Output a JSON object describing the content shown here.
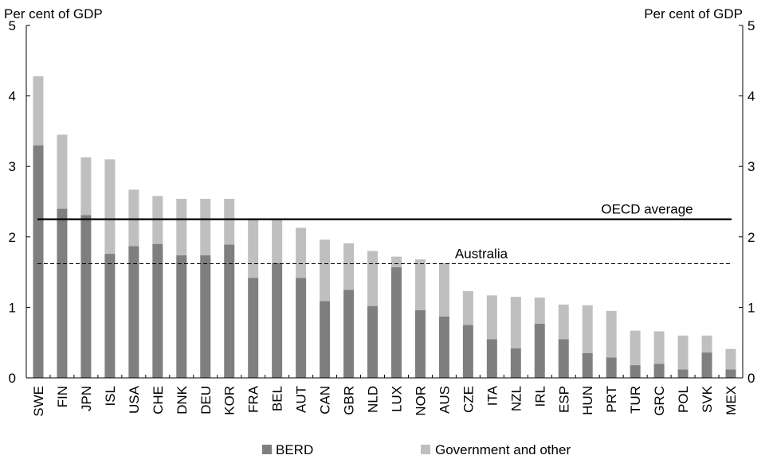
{
  "chart_data": {
    "type": "bar",
    "stacked": true,
    "y_unit_left": "Per cent of GDP",
    "y_unit_right": "Per cent of GDP",
    "ylim": [
      0,
      5
    ],
    "yticks": [
      0,
      1,
      2,
      3,
      4,
      5
    ],
    "grid": false,
    "legend_position": "bottom",
    "categories": [
      "SWE",
      "FIN",
      "JPN",
      "ISL",
      "USA",
      "CHE",
      "DNK",
      "DEU",
      "KOR",
      "FRA",
      "BEL",
      "AUT",
      "CAN",
      "GBR",
      "NLD",
      "LUX",
      "NOR",
      "AUS",
      "CZE",
      "ITA",
      "NZL",
      "IRL",
      "ESP",
      "HUN",
      "PRT",
      "TUR",
      "GRC",
      "POL",
      "SVK",
      "MEX"
    ],
    "series": [
      {
        "name": "BERD",
        "color": "#7f7f7f",
        "values": [
          3.3,
          2.4,
          2.31,
          1.76,
          1.87,
          1.9,
          1.74,
          1.74,
          1.89,
          1.42,
          1.63,
          1.42,
          1.09,
          1.25,
          1.02,
          1.57,
          0.96,
          0.87,
          0.75,
          0.55,
          0.42,
          0.77,
          0.55,
          0.35,
          0.29,
          0.18,
          0.2,
          0.12,
          0.36,
          0.12
        ]
      },
      {
        "name": "Government and other",
        "color": "#bfbfbf",
        "values": [
          0.98,
          1.05,
          0.82,
          1.34,
          0.8,
          0.68,
          0.8,
          0.8,
          0.65,
          0.82,
          0.62,
          0.71,
          0.87,
          0.66,
          0.78,
          0.15,
          0.72,
          0.76,
          0.48,
          0.62,
          0.73,
          0.37,
          0.49,
          0.68,
          0.66,
          0.49,
          0.46,
          0.48,
          0.24,
          0.29
        ]
      }
    ],
    "reference_lines": [
      {
        "label": "OECD average",
        "value": 2.25,
        "style": "solid",
        "color": "#000000"
      },
      {
        "label": "Australia",
        "value": 1.62,
        "style": "dashed",
        "color": "#000000"
      }
    ]
  }
}
